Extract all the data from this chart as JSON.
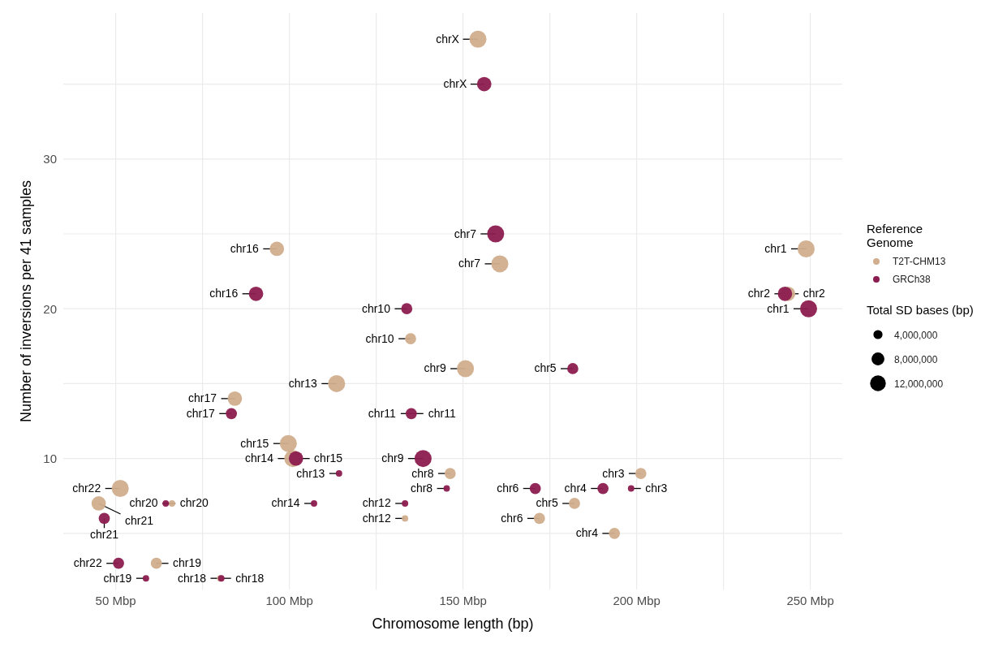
{
  "chart_data": {
    "type": "bubble",
    "xlabel": "Chromosome length (bp)",
    "ylabel": "Number of inversions per 41 samples",
    "legend_title": "Reference Genome",
    "legend": "right",
    "grid": true,
    "marker": "circle",
    "xlim": [
      34.9,
      259.2
    ],
    "ylim": [
      1.25,
      39.75
    ],
    "xticks": [
      {
        "value": 50,
        "label": "50 Mbp"
      },
      {
        "value": 75,
        "label": null
      },
      {
        "value": 100,
        "label": "100 Mbp"
      },
      {
        "value": 125,
        "label": null
      },
      {
        "value": 150,
        "label": "150 Mbp"
      },
      {
        "value": 175,
        "label": null
      },
      {
        "value": 200,
        "label": "200 Mbp"
      },
      {
        "value": 225,
        "label": null
      },
      {
        "value": 250,
        "label": "250 Mbp"
      }
    ],
    "yticks": [
      {
        "value": 5,
        "label": null
      },
      10,
      {
        "value": 15,
        "label": null
      },
      20,
      {
        "value": 25,
        "label": null
      },
      30,
      {
        "value": 35,
        "label": null
      }
    ],
    "size_legend": [
      {
        "value": 4000000,
        "label": "4,000,000"
      },
      {
        "value": 8000000,
        "label": "8,000,000"
      },
      {
        "value": 12000000,
        "label": "12,000,000"
      }
    ],
    "series": [
      {
        "name": "T2T-CHM13",
        "color": "#d1ae8d",
        "x": [
          248.8,
          243.6,
          201.2,
          193.6,
          182.1,
          172.0,
          160.6,
          146.3,
          150.7,
          134.9,
          null,
          133.3,
          113.6,
          101.0,
          99.7,
          96.4,
          84.3,
          80.1,
          61.7,
          66.2,
          45.1,
          51.3,
          154.3
        ],
        "values": [
          24,
          21,
          9,
          5,
          7,
          6,
          23,
          9,
          16,
          18,
          null,
          6,
          15,
          10,
          11,
          24,
          14,
          2,
          3,
          7,
          7,
          8,
          38
        ],
        "sizes": [
          14000000,
          10000000,
          6000000,
          6000000,
          6000000,
          6000000,
          14000000,
          6000000,
          14000000,
          6000000,
          null,
          2000000,
          14000000,
          14000000,
          14000000,
          10000000,
          10000000,
          2000000,
          6000000,
          2000000,
          10000000,
          14000000,
          14000000
        ]
      },
      {
        "name": "GRCh38",
        "color": "#8c1c4f",
        "x": [
          249.5,
          242.7,
          198.4,
          190.3,
          181.6,
          170.8,
          159.4,
          145.3,
          138.5,
          133.8,
          135.1,
          133.3,
          114.3,
          107.1,
          101.9,
          90.4,
          83.3,
          80.4,
          58.7,
          64.4,
          46.7,
          50.8,
          156.1
        ],
        "values": [
          20,
          21,
          8,
          8,
          16,
          8,
          25,
          8,
          10,
          20,
          13,
          7,
          9,
          7,
          10,
          21,
          13,
          2,
          2,
          7,
          6,
          3,
          35
        ],
        "sizes": [
          14000000,
          10000000,
          2000000,
          6000000,
          6000000,
          6000000,
          14000000,
          2000000,
          14000000,
          6000000,
          6000000,
          2000000,
          2000000,
          2000000,
          10000000,
          10000000,
          6000000,
          2000000,
          2000000,
          2000000,
          6000000,
          6000000,
          10000000
        ]
      }
    ],
    "annotations": [
      {
        "text": "chr1",
        "x": 248.8,
        "y": 24
      },
      {
        "text": "chr2",
        "x": 243.6,
        "y": 21
      },
      {
        "text": "chr3",
        "x": 201.2,
        "y": 9
      },
      {
        "text": "chr4",
        "x": 193.6,
        "y": 5
      },
      {
        "text": "chr5",
        "x": 182.1,
        "y": 7
      },
      {
        "text": "chr6",
        "x": 172.0,
        "y": 6
      },
      {
        "text": "chr7",
        "x": 160.6,
        "y": 23
      },
      {
        "text": "chr8",
        "x": 146.3,
        "y": 9
      },
      {
        "text": "chr9",
        "x": 150.7,
        "y": 16
      },
      {
        "text": "chr10",
        "x": 134.9,
        "y": 18
      },
      {
        "text": "chr11",
        "x": 135.1,
        "y": 13
      },
      {
        "text": "chr12",
        "x": 133.3,
        "y": 6
      },
      {
        "text": "chr13",
        "x": 113.6,
        "y": 15
      },
      {
        "text": "chr14",
        "x": 101.0,
        "y": 10
      },
      {
        "text": "chr15",
        "x": 99.7,
        "y": 11
      },
      {
        "text": "chr16",
        "x": 96.4,
        "y": 24
      },
      {
        "text": "chr17",
        "x": 84.3,
        "y": 14
      },
      {
        "text": "chr18",
        "x": 80.1,
        "y": 2
      },
      {
        "text": "chr19",
        "x": 61.7,
        "y": 3
      },
      {
        "text": "chr20",
        "x": 66.2,
        "y": 7
      },
      {
        "text": "chr21",
        "x": 45.1,
        "y": 7
      },
      {
        "text": "chr22",
        "x": 51.3,
        "y": 8
      },
      {
        "text": "chrX",
        "x": 154.3,
        "y": 38
      },
      {
        "text": "chr1",
        "x": 249.5,
        "y": 20
      },
      {
        "text": "chr2",
        "x": 242.7,
        "y": 21
      },
      {
        "text": "chr3",
        "x": 198.4,
        "y": 8
      },
      {
        "text": "chr4",
        "x": 190.3,
        "y": 8
      },
      {
        "text": "chr5",
        "x": 181.6,
        "y": 16
      },
      {
        "text": "chr6",
        "x": 170.8,
        "y": 8
      },
      {
        "text": "chr7",
        "x": 159.4,
        "y": 25
      },
      {
        "text": "chr8",
        "x": 145.3,
        "y": 8
      },
      {
        "text": "chr9",
        "x": 138.5,
        "y": 10
      },
      {
        "text": "chr10",
        "x": 133.8,
        "y": 20
      },
      {
        "text": "chr11",
        "x": 135.1,
        "y": 13
      },
      {
        "text": "chr12",
        "x": 133.3,
        "y": 7
      },
      {
        "text": "chr13",
        "x": 114.3,
        "y": 9
      },
      {
        "text": "chr14",
        "x": 107.1,
        "y": 7
      },
      {
        "text": "chr15",
        "x": 101.9,
        "y": 10
      },
      {
        "text": "chr16",
        "x": 90.4,
        "y": 21
      },
      {
        "text": "chr17",
        "x": 83.3,
        "y": 13
      },
      {
        "text": "chr18",
        "x": 80.4,
        "y": 2
      },
      {
        "text": "chr19",
        "x": 58.7,
        "y": 2
      },
      {
        "text": "chr20",
        "x": 64.4,
        "y": 7
      },
      {
        "text": "chr21",
        "x": 46.7,
        "y": 6
      },
      {
        "text": "chr22",
        "x": 50.8,
        "y": 3
      },
      {
        "text": "chrX",
        "x": 156.1,
        "y": 35
      },
      "Total SD bases (bp)"
    ]
  }
}
